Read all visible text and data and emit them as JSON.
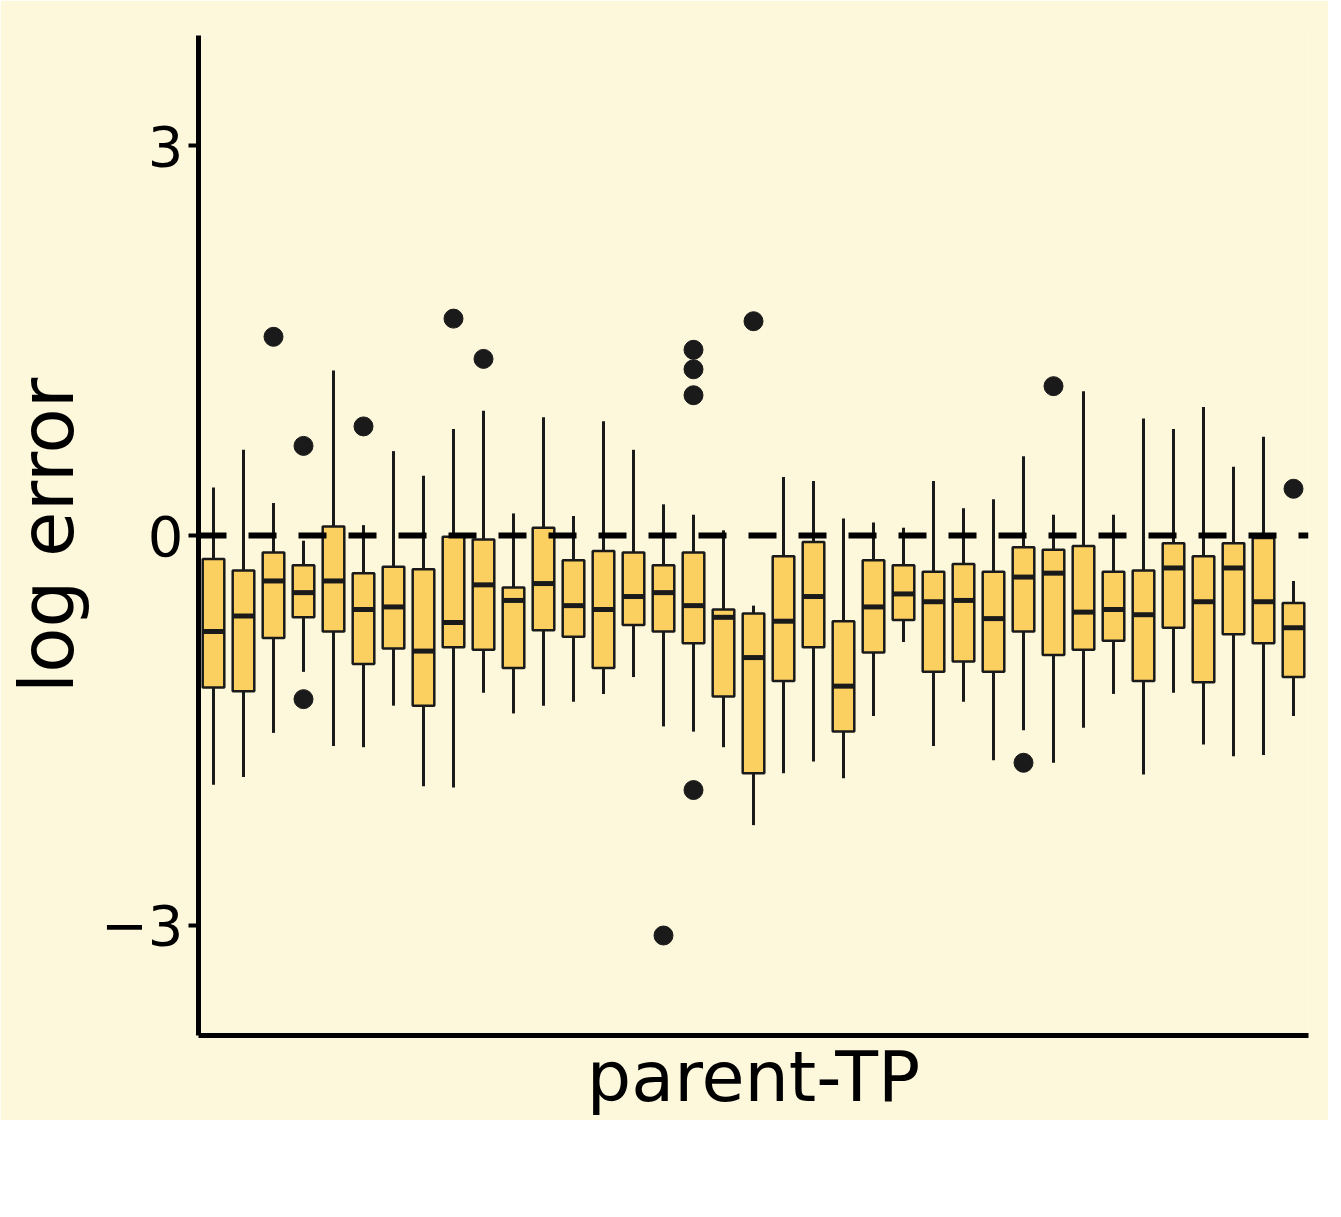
{
  "chart_data": {
    "type": "box",
    "xlabel": "parent-TP",
    "ylabel": "log error",
    "color": "#fcd060",
    "ylim": [
      -3.85,
      3.85
    ],
    "yticks": [
      -3,
      0,
      3
    ],
    "grid": false,
    "ref_lines": [
      {
        "axis": "y",
        "value": 0,
        "label": null,
        "color": "#000000",
        "line_style": "dashed"
      }
    ],
    "categories": [
      null,
      null,
      null,
      null,
      null,
      null,
      null,
      null,
      null,
      null,
      null,
      null,
      null,
      null,
      null,
      null,
      null,
      null,
      null,
      null,
      null,
      null,
      null,
      null,
      null,
      null,
      null,
      null,
      null,
      null,
      null,
      null,
      null,
      null,
      null,
      null,
      null
    ],
    "boxes": [
      {
        "low": -1.92,
        "q1": -1.17,
        "median": -0.74,
        "q3": -0.18,
        "high": 0.37
      },
      {
        "low": -1.86,
        "q1": -1.2,
        "median": -0.62,
        "q3": -0.27,
        "high": 0.66
      },
      {
        "low": -1.52,
        "q1": -0.79,
        "median": -0.35,
        "q3": -0.13,
        "high": 0.25,
        "outliers": [
          1.53
        ]
      },
      {
        "low": -1.05,
        "q1": -0.63,
        "median": -0.44,
        "q3": -0.23,
        "high": -0.04,
        "outliers": [
          0.69,
          -1.26
        ]
      },
      {
        "low": -1.62,
        "q1": -0.74,
        "median": -0.35,
        "q3": 0.07,
        "high": 1.27
      },
      {
        "low": -1.63,
        "q1": -0.99,
        "median": -0.57,
        "q3": -0.29,
        "high": 0.08,
        "outliers": [
          0.84
        ]
      },
      {
        "low": -1.31,
        "q1": -0.87,
        "median": -0.55,
        "q3": -0.24,
        "high": 0.65
      },
      {
        "low": -1.93,
        "q1": -1.31,
        "median": -0.89,
        "q3": -0.26,
        "high": 0.46
      },
      {
        "low": -1.94,
        "q1": -0.86,
        "median": -0.67,
        "q3": -0.01,
        "high": 0.82,
        "outliers": [
          1.67
        ]
      },
      {
        "low": -1.21,
        "q1": -0.88,
        "median": -0.38,
        "q3": -0.03,
        "high": 0.96,
        "outliers": [
          1.36
        ]
      },
      {
        "low": -1.37,
        "q1": -1.02,
        "median": -0.5,
        "q3": -0.4,
        "high": 0.17
      },
      {
        "low": -1.31,
        "q1": -0.73,
        "median": -0.37,
        "q3": 0.06,
        "high": 0.91
      },
      {
        "low": -1.28,
        "q1": -0.78,
        "median": -0.54,
        "q3": -0.19,
        "high": 0.15
      },
      {
        "low": -1.22,
        "q1": -1.02,
        "median": -0.57,
        "q3": -0.12,
        "high": 0.88
      },
      {
        "low": -1.09,
        "q1": -0.69,
        "median": -0.47,
        "q3": -0.13,
        "high": 0.66
      },
      {
        "low": -1.47,
        "q1": -0.74,
        "median": -0.44,
        "q3": -0.23,
        "high": 0.24,
        "outliers": [
          -3.08
        ]
      },
      {
        "low": -1.51,
        "q1": -0.83,
        "median": -0.54,
        "q3": -0.13,
        "high": 0.16,
        "outliers": [
          1.43,
          1.28,
          1.08,
          -1.96
        ]
      },
      {
        "low": -1.63,
        "q1": -1.24,
        "median": -0.63,
        "q3": -0.57,
        "high": 0.04
      },
      {
        "low": -2.23,
        "q1": -1.83,
        "median": -0.94,
        "q3": -0.6,
        "high": -0.54,
        "outliers": [
          1.65
        ]
      },
      {
        "low": -1.83,
        "q1": -1.12,
        "median": -0.66,
        "q3": -0.16,
        "high": 0.45
      },
      {
        "low": -1.74,
        "q1": -0.86,
        "median": -0.47,
        "q3": -0.05,
        "high": 0.42
      },
      {
        "low": -1.87,
        "q1": -1.51,
        "median": -1.16,
        "q3": -0.66,
        "high": 0.13
      },
      {
        "low": -1.39,
        "q1": -0.9,
        "median": -0.55,
        "q3": -0.19,
        "high": 0.1
      },
      {
        "low": -0.82,
        "q1": -0.65,
        "median": -0.45,
        "q3": -0.23,
        "high": 0.06
      },
      {
        "low": -1.62,
        "q1": -1.05,
        "median": -0.51,
        "q3": -0.28,
        "high": 0.42
      },
      {
        "low": -1.28,
        "q1": -0.97,
        "median": -0.5,
        "q3": -0.22,
        "high": 0.21
      },
      {
        "low": -1.73,
        "q1": -1.05,
        "median": -0.64,
        "q3": -0.28,
        "high": 0.28
      },
      {
        "low": -1.5,
        "q1": -0.74,
        "median": -0.32,
        "q3": -0.09,
        "high": 0.61,
        "outliers": [
          -1.75
        ]
      },
      {
        "low": -1.75,
        "q1": -0.92,
        "median": -0.29,
        "q3": -0.11,
        "high": 0.16,
        "outliers": [
          1.15
        ]
      },
      {
        "low": -1.48,
        "q1": -0.88,
        "median": -0.59,
        "q3": -0.08,
        "high": 1.11
      },
      {
        "low": -1.22,
        "q1": -0.81,
        "median": -0.57,
        "q3": -0.28,
        "high": 0.16
      },
      {
        "low": -1.84,
        "q1": -1.12,
        "median": -0.61,
        "q3": -0.27,
        "high": 0.9
      },
      {
        "low": -1.21,
        "q1": -0.71,
        "median": -0.25,
        "q3": -0.06,
        "high": 0.82
      },
      {
        "low": -1.61,
        "q1": -1.13,
        "median": -0.51,
        "q3": -0.16,
        "high": 0.99
      },
      {
        "low": -1.7,
        "q1": -0.76,
        "median": -0.25,
        "q3": -0.06,
        "high": 0.53
      },
      {
        "low": -1.69,
        "q1": -0.83,
        "median": -0.51,
        "q3": -0.02,
        "high": 0.76
      },
      {
        "low": -1.39,
        "q1": -1.09,
        "median": -0.71,
        "q3": -0.52,
        "high": -0.35,
        "outliers": [
          0.36
        ]
      }
    ]
  }
}
